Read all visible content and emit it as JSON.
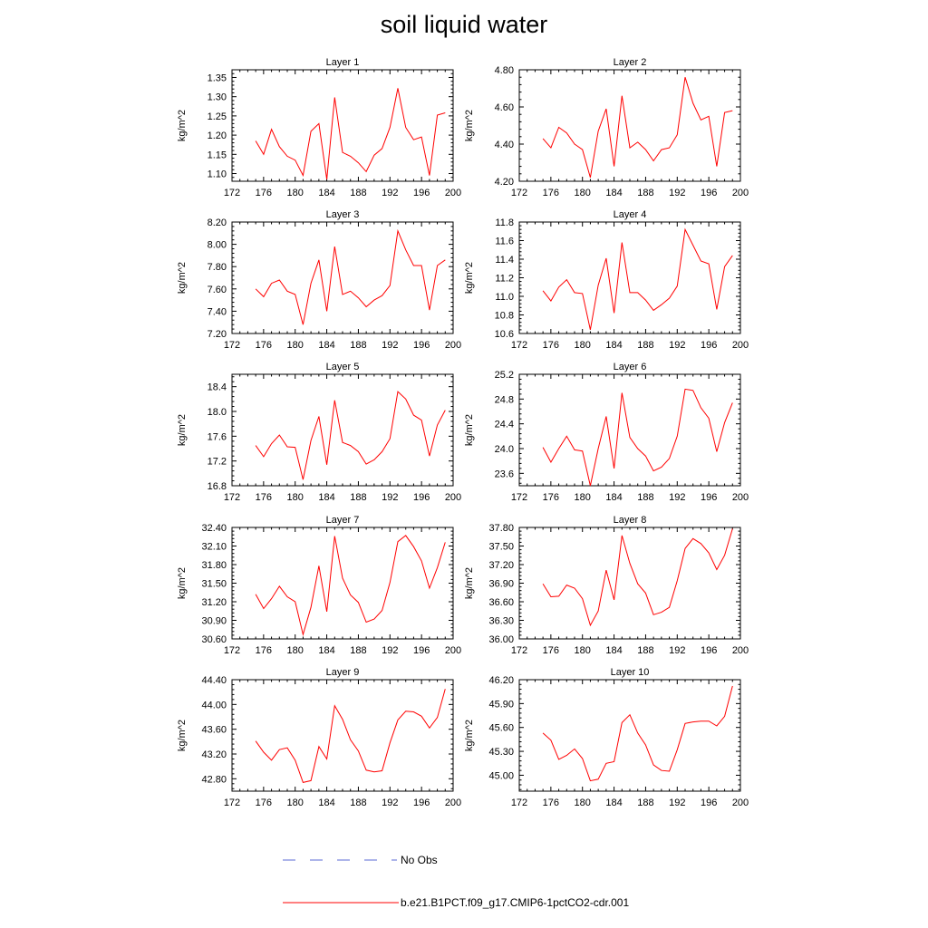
{
  "figure": {
    "title": "soil liquid water"
  },
  "legend": [
    {
      "label": "No Obs",
      "color": "#5b6bd6",
      "style": "dashed"
    },
    {
      "label": "b.e21.B1PCT.f09_g17.CMIP6-1pctCO2-cdr.001",
      "color": "#ff0000",
      "style": "solid"
    }
  ],
  "chart_data": [
    {
      "type": "line",
      "title": "Layer 1",
      "ylabel": "kg/m^2",
      "xlim": [
        172,
        200
      ],
      "ylim": [
        1.08,
        1.37
      ],
      "xticks": [
        "172",
        "176",
        "180",
        "184",
        "188",
        "192",
        "196",
        "200"
      ],
      "yticks": [
        "1.10",
        "1.15",
        "1.20",
        "1.25",
        "1.30",
        "1.35"
      ],
      "x": [
        175,
        176,
        177,
        178,
        179,
        180,
        181,
        182,
        183,
        184,
        185,
        186,
        187,
        188,
        189,
        190,
        191,
        192,
        193,
        194,
        195,
        196,
        197,
        198,
        199
      ],
      "series": [
        {
          "color": "#ff0000",
          "values": [
            1.185,
            1.15,
            1.215,
            1.17,
            1.145,
            1.135,
            1.095,
            1.21,
            1.23,
            1.085,
            1.298,
            1.155,
            1.145,
            1.128,
            1.105,
            1.148,
            1.165,
            1.22,
            1.322,
            1.22,
            1.188,
            1.195,
            1.095,
            1.252,
            1.258
          ]
        }
      ]
    },
    {
      "type": "line",
      "title": "Layer 2",
      "ylabel": "kg/m^2",
      "xlim": [
        172,
        200
      ],
      "ylim": [
        4.2,
        4.8
      ],
      "xticks": [
        "172",
        "176",
        "180",
        "184",
        "188",
        "192",
        "196",
        "200"
      ],
      "yticks": [
        "4.20",
        "4.40",
        "4.60",
        "4.80"
      ],
      "x": [
        175,
        176,
        177,
        178,
        179,
        180,
        181,
        182,
        183,
        184,
        185,
        186,
        187,
        188,
        189,
        190,
        191,
        192,
        193,
        194,
        195,
        196,
        197,
        198,
        199
      ],
      "series": [
        {
          "color": "#ff0000",
          "values": [
            4.43,
            4.38,
            4.49,
            4.46,
            4.4,
            4.37,
            4.22,
            4.47,
            4.59,
            4.28,
            4.66,
            4.38,
            4.41,
            4.37,
            4.31,
            4.37,
            4.38,
            4.45,
            4.76,
            4.62,
            4.53,
            4.55,
            4.28,
            4.57,
            4.58
          ]
        }
      ]
    },
    {
      "type": "line",
      "title": "Layer 3",
      "ylabel": "kg/m^2",
      "xlim": [
        172,
        200
      ],
      "ylim": [
        7.2,
        8.2
      ],
      "xticks": [
        "172",
        "176",
        "180",
        "184",
        "188",
        "192",
        "196",
        "200"
      ],
      "yticks": [
        "7.20",
        "7.40",
        "7.60",
        "7.80",
        "8.00",
        "8.20"
      ],
      "x": [
        175,
        176,
        177,
        178,
        179,
        180,
        181,
        182,
        183,
        184,
        185,
        186,
        187,
        188,
        189,
        190,
        191,
        192,
        193,
        194,
        195,
        196,
        197,
        198,
        199
      ],
      "series": [
        {
          "color": "#ff0000",
          "values": [
            7.6,
            7.53,
            7.65,
            7.68,
            7.58,
            7.55,
            7.28,
            7.65,
            7.86,
            7.4,
            7.98,
            7.55,
            7.58,
            7.52,
            7.44,
            7.5,
            7.54,
            7.63,
            8.12,
            7.95,
            7.81,
            7.81,
            7.41,
            7.81,
            7.86
          ]
        }
      ]
    },
    {
      "type": "line",
      "title": "Layer 4",
      "ylabel": "kg/m^2",
      "xlim": [
        172,
        200
      ],
      "ylim": [
        10.6,
        11.8
      ],
      "xticks": [
        "172",
        "176",
        "180",
        "184",
        "188",
        "192",
        "196",
        "200"
      ],
      "yticks": [
        "10.6",
        "10.8",
        "11.0",
        "11.2",
        "11.4",
        "11.6",
        "11.8"
      ],
      "x": [
        175,
        176,
        177,
        178,
        179,
        180,
        181,
        182,
        183,
        184,
        185,
        186,
        187,
        188,
        189,
        190,
        191,
        192,
        193,
        194,
        195,
        196,
        197,
        198,
        199
      ],
      "series": [
        {
          "color": "#ff0000",
          "values": [
            11.06,
            10.95,
            11.1,
            11.18,
            11.04,
            11.03,
            10.64,
            11.12,
            11.41,
            10.82,
            11.58,
            11.04,
            11.04,
            10.96,
            10.85,
            10.91,
            10.98,
            11.11,
            11.72,
            11.55,
            11.38,
            11.35,
            10.86,
            11.32,
            11.44
          ]
        }
      ]
    },
    {
      "type": "line",
      "title": "Layer 5",
      "ylabel": "kg/m^2",
      "xlim": [
        172,
        200
      ],
      "ylim": [
        16.8,
        18.6
      ],
      "xticks": [
        "172",
        "176",
        "180",
        "184",
        "188",
        "192",
        "196",
        "200"
      ],
      "yticks": [
        "16.8",
        "17.2",
        "17.6",
        "18.0",
        "18.4"
      ],
      "x": [
        175,
        176,
        177,
        178,
        179,
        180,
        181,
        182,
        183,
        184,
        185,
        186,
        187,
        188,
        189,
        190,
        191,
        192,
        193,
        194,
        195,
        196,
        197,
        198,
        199
      ],
      "series": [
        {
          "color": "#ff0000",
          "values": [
            17.45,
            17.27,
            17.48,
            17.62,
            17.43,
            17.42,
            16.9,
            17.53,
            17.92,
            17.14,
            18.18,
            17.5,
            17.45,
            17.35,
            17.15,
            17.22,
            17.35,
            17.56,
            18.32,
            18.2,
            17.94,
            17.86,
            17.28,
            17.78,
            18.02
          ]
        }
      ]
    },
    {
      "type": "line",
      "title": "Layer 6",
      "ylabel": "kg/m^2",
      "xlim": [
        172,
        200
      ],
      "ylim": [
        23.4,
        25.2
      ],
      "xticks": [
        "172",
        "176",
        "180",
        "184",
        "188",
        "192",
        "196",
        "200"
      ],
      "yticks": [
        "23.6",
        "24.0",
        "24.4",
        "24.8",
        "25.2"
      ],
      "x": [
        175,
        176,
        177,
        178,
        179,
        180,
        181,
        182,
        183,
        184,
        185,
        186,
        187,
        188,
        189,
        190,
        191,
        192,
        193,
        194,
        195,
        196,
        197,
        198,
        199
      ],
      "series": [
        {
          "color": "#ff0000",
          "values": [
            24.02,
            23.78,
            24.0,
            24.2,
            23.98,
            23.96,
            23.4,
            24.0,
            24.52,
            23.68,
            24.9,
            24.18,
            24.0,
            23.88,
            23.64,
            23.7,
            23.84,
            24.2,
            24.96,
            24.94,
            24.66,
            24.49,
            23.95,
            24.42,
            24.74
          ]
        }
      ]
    },
    {
      "type": "line",
      "title": "Layer 7",
      "ylabel": "kg/m^2",
      "xlim": [
        172,
        200
      ],
      "ylim": [
        30.6,
        32.4
      ],
      "xticks": [
        "172",
        "176",
        "180",
        "184",
        "188",
        "192",
        "196",
        "200"
      ],
      "yticks": [
        "30.60",
        "30.90",
        "31.20",
        "31.50",
        "31.80",
        "32.10",
        "32.40"
      ],
      "x": [
        175,
        176,
        177,
        178,
        179,
        180,
        181,
        182,
        183,
        184,
        185,
        186,
        187,
        188,
        189,
        190,
        191,
        192,
        193,
        194,
        195,
        196,
        197,
        198,
        199
      ],
      "series": [
        {
          "color": "#ff0000",
          "values": [
            31.32,
            31.09,
            31.25,
            31.45,
            31.28,
            31.2,
            30.67,
            31.11,
            31.78,
            31.04,
            32.26,
            31.58,
            31.31,
            31.19,
            30.87,
            30.92,
            31.06,
            31.51,
            32.17,
            32.27,
            32.09,
            31.86,
            31.42,
            31.75,
            32.16
          ]
        }
      ]
    },
    {
      "type": "line",
      "title": "Layer 8",
      "ylabel": "kg/m^2",
      "xlim": [
        172,
        200
      ],
      "ylim": [
        36.0,
        37.8
      ],
      "xticks": [
        "172",
        "176",
        "180",
        "184",
        "188",
        "192",
        "196",
        "200"
      ],
      "yticks": [
        "36.00",
        "36.30",
        "36.60",
        "36.90",
        "37.20",
        "37.50",
        "37.80"
      ],
      "x": [
        175,
        176,
        177,
        178,
        179,
        180,
        181,
        182,
        183,
        184,
        185,
        186,
        187,
        188,
        189,
        190,
        191,
        192,
        193,
        194,
        195,
        196,
        197,
        198,
        199
      ],
      "series": [
        {
          "color": "#ff0000",
          "values": [
            36.89,
            36.68,
            36.69,
            36.87,
            36.82,
            36.65,
            36.22,
            36.45,
            37.11,
            36.63,
            37.67,
            37.22,
            36.89,
            36.74,
            36.39,
            36.43,
            36.51,
            36.94,
            37.46,
            37.62,
            37.54,
            37.39,
            37.12,
            37.35,
            37.78
          ]
        }
      ]
    },
    {
      "type": "line",
      "title": "Layer 9",
      "ylabel": "kg/m^2",
      "xlim": [
        172,
        200
      ],
      "ylim": [
        42.6,
        44.4
      ],
      "xticks": [
        "172",
        "176",
        "180",
        "184",
        "188",
        "192",
        "196",
        "200"
      ],
      "yticks": [
        "42.80",
        "43.20",
        "43.60",
        "44.00",
        "44.40"
      ],
      "x": [
        175,
        176,
        177,
        178,
        179,
        180,
        181,
        182,
        183,
        184,
        185,
        186,
        187,
        188,
        189,
        190,
        191,
        192,
        193,
        194,
        195,
        196,
        197,
        198,
        199
      ],
      "series": [
        {
          "color": "#ff0000",
          "values": [
            43.41,
            43.23,
            43.1,
            43.27,
            43.3,
            43.1,
            42.74,
            42.77,
            43.32,
            43.12,
            43.98,
            43.76,
            43.43,
            43.25,
            42.94,
            42.91,
            42.93,
            43.38,
            43.75,
            43.89,
            43.88,
            43.81,
            43.62,
            43.79,
            44.25
          ]
        }
      ]
    },
    {
      "type": "line",
      "title": "Layer 10",
      "ylabel": "kg/m^2",
      "xlim": [
        172,
        200
      ],
      "ylim": [
        44.8,
        46.2
      ],
      "xticks": [
        "172",
        "176",
        "180",
        "184",
        "188",
        "192",
        "196",
        "200"
      ],
      "yticks": [
        "45.00",
        "45.30",
        "45.60",
        "45.90",
        "46.20"
      ],
      "x": [
        175,
        176,
        177,
        178,
        179,
        180,
        181,
        182,
        183,
        184,
        185,
        186,
        187,
        188,
        189,
        190,
        191,
        192,
        193,
        194,
        195,
        196,
        197,
        198,
        199
      ],
      "series": [
        {
          "color": "#ff0000",
          "values": [
            45.53,
            45.44,
            45.2,
            45.25,
            45.33,
            45.21,
            44.93,
            44.95,
            45.15,
            45.17,
            45.66,
            45.76,
            45.53,
            45.38,
            45.13,
            45.06,
            45.05,
            45.32,
            45.65,
            45.67,
            45.68,
            45.68,
            45.62,
            45.74,
            46.12
          ]
        }
      ]
    }
  ]
}
